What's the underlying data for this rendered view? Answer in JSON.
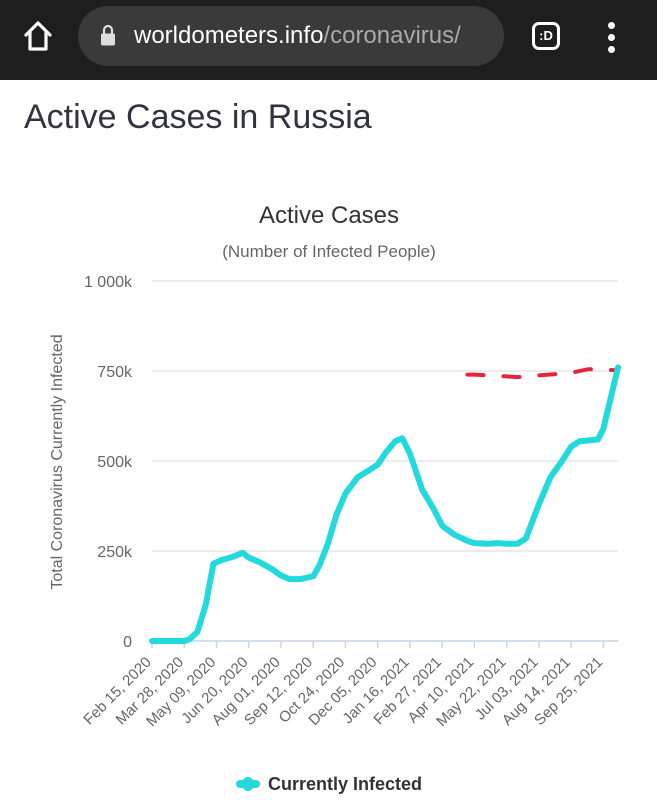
{
  "browser": {
    "url_host": "worldometers.info",
    "url_path": "/coronavirus/",
    "tabs_label": ":D"
  },
  "page": {
    "heading": "Active Cases in Russia"
  },
  "icons": {
    "home": "home-icon",
    "lock": "lock-icon",
    "tabs": "tabs-icon",
    "menu": "more-vert-icon"
  },
  "colors": {
    "series": "#22d9dc",
    "annotation": "#e8243c",
    "grid": "#e6e6e6",
    "axis_line": "#c8d4e8"
  },
  "chart_data": {
    "type": "line",
    "title": "Active Cases",
    "subtitle": "(Number of Infected People)",
    "ylabel": "Total Coronavirus Currently Infected",
    "xlabel": "",
    "ylim": [
      0,
      1000000
    ],
    "yticks": [
      0,
      250000,
      500000,
      750000,
      1000000
    ],
    "ytick_labels": [
      "0",
      "250k",
      "500k",
      "750k",
      "1 000k"
    ],
    "xtick_labels": [
      "Feb 15, 2020",
      "Mar 28, 2020",
      "May 09, 2020",
      "Jun 20, 2020",
      "Aug 01, 2020",
      "Sep 12, 2020",
      "Oct 24, 2020",
      "Dec 05, 2020",
      "Jan 16, 2021",
      "Feb 27, 2021",
      "Apr 10, 2021",
      "May 22, 2021",
      "Jul 03, 2021",
      "Aug 14, 2021",
      "Sep 25, 2021"
    ],
    "grid": true,
    "legend": "bottom",
    "series": [
      {
        "name": "Currently Infected",
        "x": [
          "Feb 15, 2020",
          "Mar 07, 2020",
          "Mar 28, 2020",
          "Apr 04, 2020",
          "Apr 14, 2020",
          "Apr 25, 2020",
          "May 05, 2020",
          "May 16, 2020",
          "Jun 01, 2020",
          "Jun 12, 2020",
          "Jun 20, 2020",
          "Jul 05, 2020",
          "Jul 20, 2020",
          "Aug 01, 2020",
          "Aug 12, 2020",
          "Aug 27, 2020",
          "Sep 12, 2020",
          "Sep 20, 2020",
          "Oct 01, 2020",
          "Oct 12, 2020",
          "Oct 24, 2020",
          "Nov 09, 2020",
          "Nov 22, 2020",
          "Dec 05, 2020",
          "Dec 16, 2020",
          "Dec 28, 2020",
          "Jan 06, 2021",
          "Jan 16, 2021",
          "Feb 01, 2021",
          "Feb 15, 2021",
          "Feb 27, 2021",
          "Mar 15, 2021",
          "Apr 01, 2021",
          "Apr 10, 2021",
          "Apr 27, 2021",
          "May 10, 2021",
          "May 22, 2021",
          "Jun 05, 2021",
          "Jun 16, 2021",
          "Jul 03, 2021",
          "Jul 18, 2021",
          "Aug 02, 2021",
          "Aug 14, 2021",
          "Aug 25, 2021",
          "Sep 05, 2021",
          "Sep 18, 2021",
          "Sep 25, 2021",
          "Oct 05, 2021",
          "Oct 14, 2021"
        ],
        "values": [
          0,
          0,
          0,
          5000,
          25000,
          100000,
          215000,
          225000,
          235000,
          245000,
          232000,
          218000,
          200000,
          182000,
          172000,
          172000,
          180000,
          210000,
          270000,
          350000,
          410000,
          455000,
          472000,
          490000,
          525000,
          555000,
          563000,
          520000,
          420000,
          370000,
          320000,
          295000,
          278000,
          272000,
          270000,
          272000,
          270000,
          270000,
          285000,
          380000,
          455000,
          500000,
          540000,
          555000,
          557000,
          560000,
          590000,
          680000,
          760000
        ]
      }
    ],
    "annotations": [
      {
        "type": "dashed-line",
        "color": "#e8243c",
        "x": [
          "Apr 01, 2021",
          "Apr 10, 2021",
          "May 22, 2021",
          "Jun 05, 2021",
          "Aug 14, 2021",
          "Sep 05, 2021",
          "Oct 14, 2021"
        ],
        "values": [
          740000,
          740000,
          735000,
          733000,
          745000,
          755000,
          752000
        ]
      }
    ]
  }
}
